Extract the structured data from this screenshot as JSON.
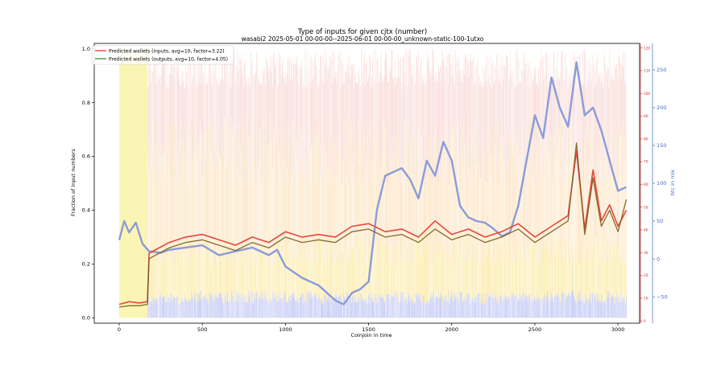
{
  "chart_data": {
    "type": "line",
    "title": "Type of inputs for given cjtx (number)",
    "subtitle": "wasabi2 2025-05-01 00-00-00--2025-06-01 00-00-00_unknown-static-100-1utxo",
    "xlabel": "Coinjoin in time",
    "ylabel": "Fraction of input numbers",
    "y2label": "btc in mix",
    "xlim": [
      -150,
      3130
    ],
    "ylim": [
      -0.02,
      1.02
    ],
    "y2lim": [
      -85,
      285
    ],
    "y3lim": [
      -1,
      122
    ],
    "x_ticks": [
      0,
      500,
      1000,
      1500,
      2000,
      2500,
      3000
    ],
    "y_ticks": [
      0.0,
      0.2,
      0.4,
      0.6,
      0.8,
      1.0
    ],
    "y2_ticks": [
      -50,
      0,
      50,
      100,
      150,
      200,
      250
    ],
    "y3_ticks": [
      0,
      10,
      20,
      30,
      40,
      50,
      60,
      70,
      80,
      90,
      100,
      110,
      120
    ],
    "grid": false,
    "legend_position": "top-left",
    "colors": {
      "inputs": "#e8463c",
      "outputs": "#3aa03a",
      "overlap": "#7a5a1e",
      "btc": "#8a9bd8",
      "stack_yellow": "#fbe89a",
      "stack_orange": "#fbd9a6",
      "stack_pink": "#f6d0cc",
      "stack_blue": "#b8bff2",
      "right_axis": "#d62728",
      "right_axis2": "#4169c8"
    },
    "series": [
      {
        "name": "Predicted wallets (inputs, avg=10, factor=3.22)",
        "axis": "left",
        "x": [
          0,
          60,
          120,
          170,
          180,
          300,
          400,
          500,
          600,
          700,
          800,
          900,
          1000,
          1100,
          1200,
          1300,
          1400,
          1500,
          1600,
          1700,
          1800,
          1900,
          2000,
          2100,
          2200,
          2300,
          2400,
          2500,
          2600,
          2700,
          2750,
          2800,
          2850,
          2900,
          2950,
          3000,
          3050
        ],
        "values": [
          0.05,
          0.06,
          0.055,
          0.06,
          0.24,
          0.28,
          0.3,
          0.31,
          0.29,
          0.27,
          0.3,
          0.28,
          0.32,
          0.3,
          0.31,
          0.3,
          0.34,
          0.35,
          0.32,
          0.33,
          0.3,
          0.36,
          0.31,
          0.33,
          0.3,
          0.32,
          0.35,
          0.3,
          0.34,
          0.38,
          0.62,
          0.33,
          0.55,
          0.36,
          0.42,
          0.34,
          0.4
        ]
      },
      {
        "name": "Predicted wallets (outputs, avg=10, factor=4.05)",
        "axis": "left",
        "x": [
          0,
          60,
          120,
          170,
          180,
          300,
          400,
          500,
          600,
          700,
          800,
          900,
          1000,
          1100,
          1200,
          1300,
          1400,
          1500,
          1600,
          1700,
          1800,
          1900,
          2000,
          2100,
          2200,
          2300,
          2400,
          2500,
          2600,
          2700,
          2750,
          2800,
          2850,
          2900,
          2950,
          3000,
          3050
        ],
        "values": [
          0.04,
          0.045,
          0.045,
          0.05,
          0.22,
          0.26,
          0.28,
          0.29,
          0.27,
          0.25,
          0.28,
          0.26,
          0.3,
          0.28,
          0.29,
          0.28,
          0.32,
          0.33,
          0.3,
          0.31,
          0.28,
          0.33,
          0.29,
          0.31,
          0.28,
          0.3,
          0.33,
          0.28,
          0.32,
          0.36,
          0.65,
          0.31,
          0.52,
          0.34,
          0.4,
          0.32,
          0.44
        ]
      },
      {
        "name": "btc in mix",
        "axis": "right",
        "x": [
          0,
          30,
          60,
          100,
          140,
          180,
          250,
          300,
          400,
          500,
          600,
          700,
          800,
          900,
          950,
          1000,
          1100,
          1150,
          1200,
          1250,
          1300,
          1350,
          1400,
          1450,
          1500,
          1550,
          1600,
          1650,
          1700,
          1750,
          1800,
          1850,
          1900,
          1950,
          2000,
          2050,
          2100,
          2150,
          2200,
          2250,
          2300,
          2350,
          2400,
          2450,
          2500,
          2550,
          2600,
          2650,
          2700,
          2750,
          2800,
          2850,
          2900,
          2950,
          3000,
          3050
        ],
        "values": [
          25,
          50,
          35,
          48,
          20,
          10,
          8,
          12,
          15,
          18,
          5,
          10,
          15,
          5,
          12,
          -10,
          -25,
          -30,
          -35,
          -45,
          -55,
          -60,
          -45,
          -40,
          -30,
          65,
          110,
          115,
          120,
          105,
          80,
          130,
          110,
          155,
          130,
          70,
          55,
          50,
          48,
          40,
          30,
          35,
          70,
          130,
          190,
          160,
          240,
          200,
          175,
          260,
          190,
          200,
          170,
          130,
          90,
          95
        ]
      }
    ]
  }
}
